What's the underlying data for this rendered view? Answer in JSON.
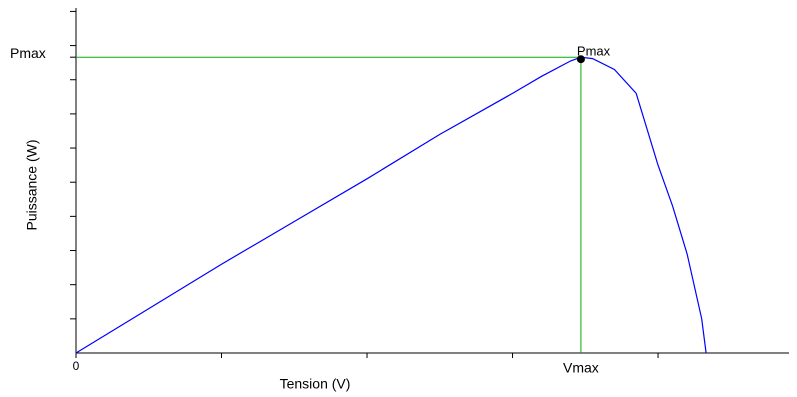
{
  "chart_data": {
    "type": "line",
    "xlabel": "Tension  (V)",
    "ylabel": "Puissance (W)",
    "x": [
      0,
      0.5,
      1,
      1.5,
      2,
      2.5,
      3,
      3.2,
      3.4,
      3.47,
      3.55,
      3.7,
      3.85,
      4.0,
      4.1,
      4.2,
      4.3,
      4.33
    ],
    "values": [
      0,
      1.3,
      2.6,
      3.85,
      5.1,
      6.4,
      7.6,
      8.1,
      8.55,
      8.66,
      8.62,
      8.3,
      7.6,
      5.5,
      4.3,
      2.9,
      1.0,
      0
    ],
    "color": "#0000ff",
    "xlim": [
      0,
      4.9
    ],
    "ylim": [
      0,
      10.1
    ],
    "xticks": [
      0
    ],
    "xminorticks": [
      1,
      2,
      3,
      4
    ],
    "yminorticks": [
      1,
      2,
      3,
      4,
      5,
      6,
      7,
      8,
      9,
      10
    ],
    "vmax": {
      "value": 3.47,
      "label": "Vmax"
    },
    "pmax": {
      "value": 8.66,
      "label": "Pmax"
    },
    "guide_color": "#00b000",
    "point_color": "#000000"
  }
}
